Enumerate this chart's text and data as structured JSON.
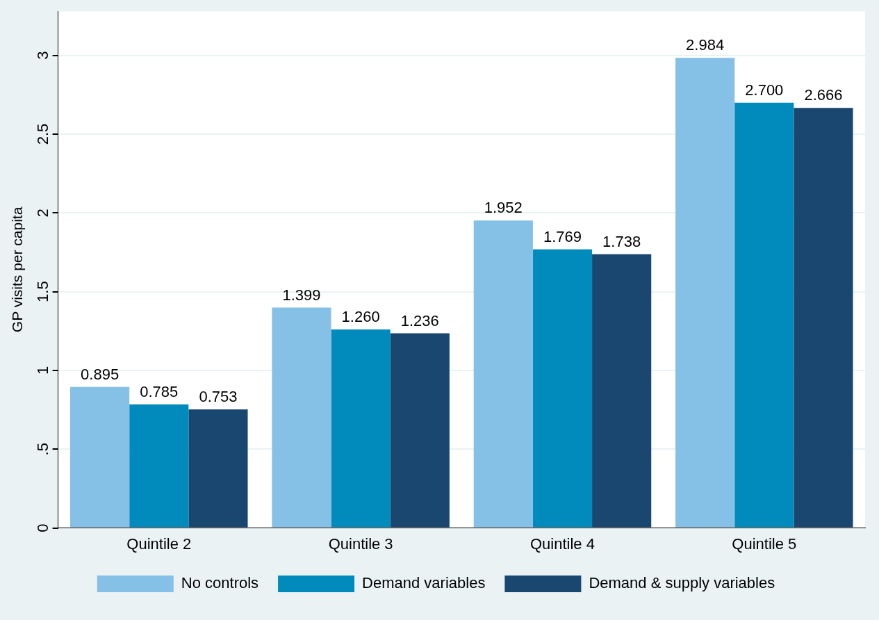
{
  "chart_data": {
    "type": "bar",
    "ylabel": "GP visits per capita",
    "categories": [
      "Quintile 2",
      "Quintile 3",
      "Quintile 4",
      "Quintile 5"
    ],
    "series": [
      {
        "name": "No controls",
        "color": "#85c0e6",
        "values": [
          0.895,
          1.399,
          1.952,
          2.984
        ]
      },
      {
        "name": "Demand variables",
        "color": "#008bbc",
        "values": [
          0.785,
          1.26,
          1.769,
          2.7
        ]
      },
      {
        "name": "Demand & supply variables",
        "color": "#1a476f",
        "values": [
          0.753,
          1.236,
          1.738,
          2.666
        ]
      }
    ],
    "value_labels": [
      [
        "0.895",
        "1.399",
        "1.952",
        "2.984"
      ],
      [
        "0.785",
        "1.260",
        "1.769",
        "2.700"
      ],
      [
        "0.753",
        "1.236",
        "1.738",
        "2.666"
      ]
    ],
    "ylim": [
      0,
      3.28
    ],
    "yticks": [
      0,
      {
        "value": 0.5,
        "label": ".5"
      },
      1,
      1.5,
      2,
      2.5,
      3
    ],
    "grid": "y",
    "legend": "bottom"
  }
}
